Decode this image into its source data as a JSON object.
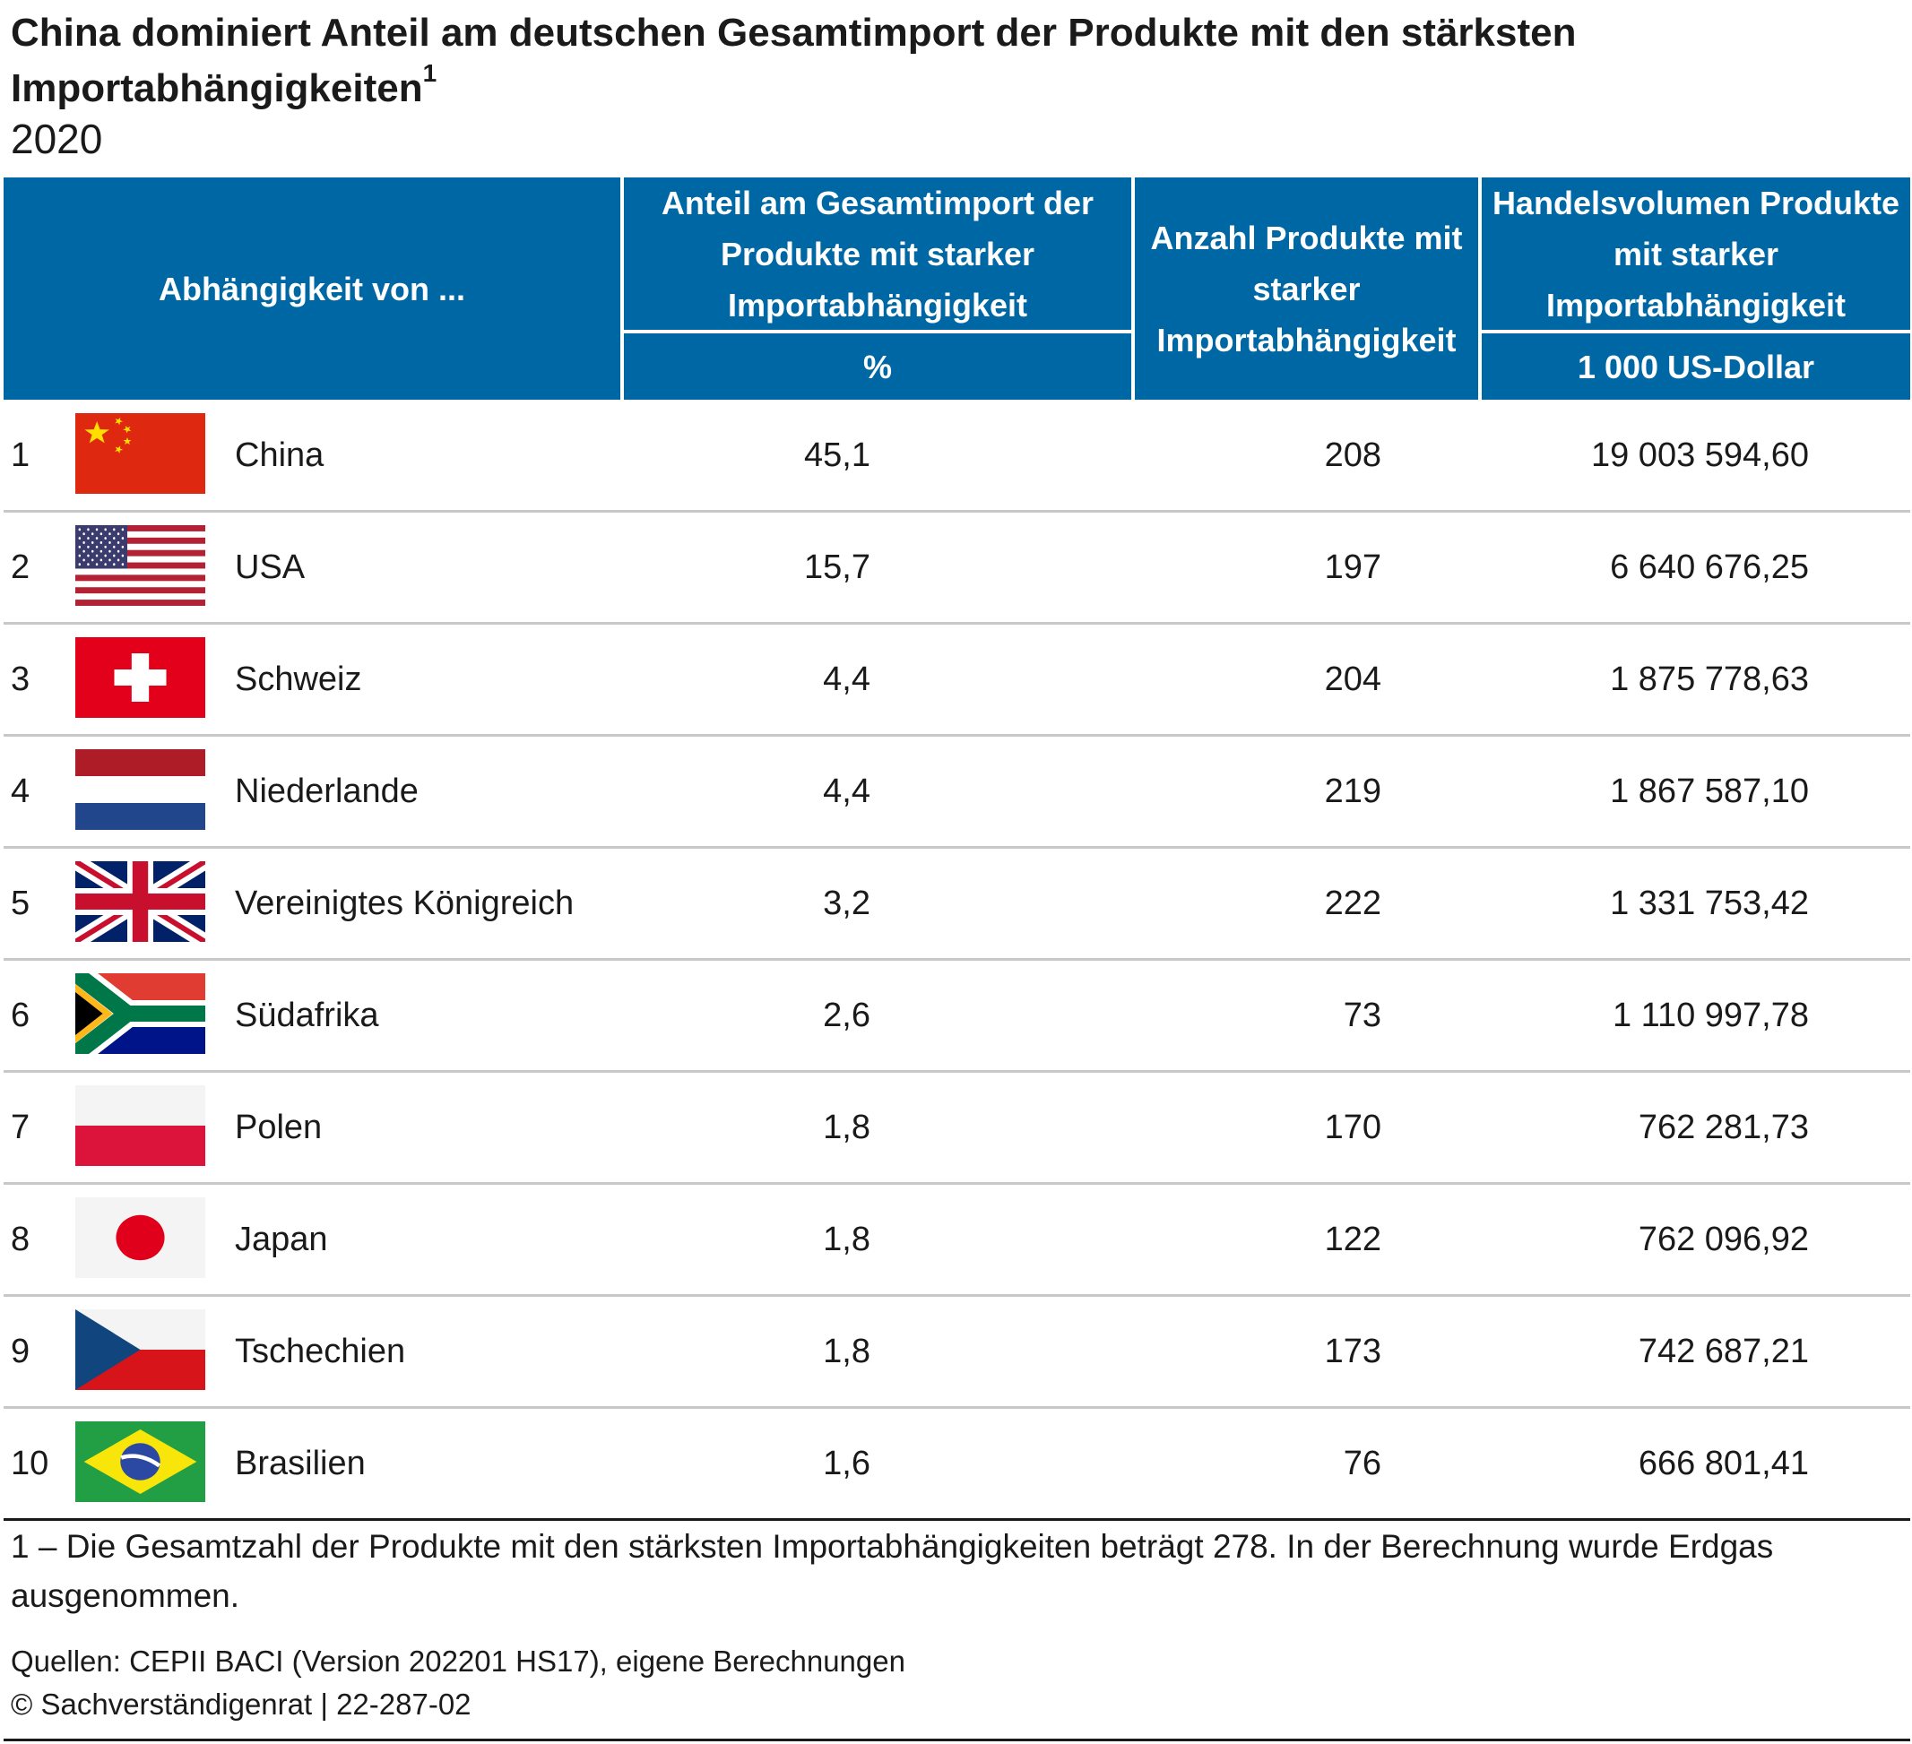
{
  "title": "China dominiert Anteil am deutschen Gesamtimport der Produkte mit den stärksten Importabhängigkeiten",
  "title_footnote_mark": "1",
  "subtitle": "2020",
  "header": {
    "col1": "Abhängigkeit von ...",
    "col2": "Anteil am Gesamtimport der Produkte mit starker Importabhängigkeit",
    "col2_unit": "%",
    "col3": "Anzahl Produkte mit starker Importabhängigkeit",
    "col4": "Handelsvolumen Produkte mit starker Importabhängigkeit",
    "col4_unit": "1 000 US-Dollar"
  },
  "colors": {
    "header_bg": "#0067a5",
    "header_text": "#ffffff",
    "row_divider": "#c8c8c8"
  },
  "chart_data": {
    "type": "table",
    "title": "China dominiert Anteil am deutschen Gesamtimport der Produkte mit den stärksten Importabhängigkeiten",
    "subtitle": "2020",
    "columns": [
      "Abhängigkeit von ...",
      "Anteil am Gesamtimport der Produkte mit starker Importabhängigkeit (%)",
      "Anzahl Produkte mit starker Importabhängigkeit",
      "Handelsvolumen Produkte mit starker Importabhängigkeit (1 000 US-Dollar)"
    ],
    "rows": [
      {
        "rank": "1",
        "flag": "china-flag-icon",
        "country": "China",
        "share": "45,1",
        "count": "208",
        "volume": "19 003 594,60"
      },
      {
        "rank": "2",
        "flag": "usa-flag-icon",
        "country": "USA",
        "share": "15,7",
        "count": "197",
        "volume": "6 640 676,25"
      },
      {
        "rank": "3",
        "flag": "switzerland-flag-icon",
        "country": "Schweiz",
        "share": "4,4",
        "count": "204",
        "volume": "1 875 778,63"
      },
      {
        "rank": "4",
        "flag": "netherlands-flag-icon",
        "country": "Niederlande",
        "share": "4,4",
        "count": "219",
        "volume": "1 867 587,10"
      },
      {
        "rank": "5",
        "flag": "uk-flag-icon",
        "country": "Vereinigtes Königreich",
        "share": "3,2",
        "count": "222",
        "volume": "1 331 753,42"
      },
      {
        "rank": "6",
        "flag": "south-africa-flag-icon",
        "country": "Südafrika",
        "share": "2,6",
        "count": "73",
        "volume": "1 110 997,78"
      },
      {
        "rank": "7",
        "flag": "poland-flag-icon",
        "country": "Polen",
        "share": "1,8",
        "count": "170",
        "volume": "762 281,73"
      },
      {
        "rank": "8",
        "flag": "japan-flag-icon",
        "country": "Japan",
        "share": "1,8",
        "count": "122",
        "volume": "762 096,92"
      },
      {
        "rank": "9",
        "flag": "czechia-flag-icon",
        "country": "Tschechien",
        "share": "1,8",
        "count": "173",
        "volume": "742 687,21"
      },
      {
        "rank": "10",
        "flag": "brazil-flag-icon",
        "country": "Brasilien",
        "share": "1,6",
        "count": "76",
        "volume": "666 801,41"
      }
    ]
  },
  "footnote": "1 – Die Gesamtzahl der Produkte mit den stärksten Importabhängigkeiten beträgt 278. In der Berechnung wurde Erdgas ausgenommen.",
  "sources": "Quellen: CEPII BACI (Version 202201 HS17), eigene Berechnungen",
  "copyright": "© Sachverständigenrat | 22-287-02"
}
